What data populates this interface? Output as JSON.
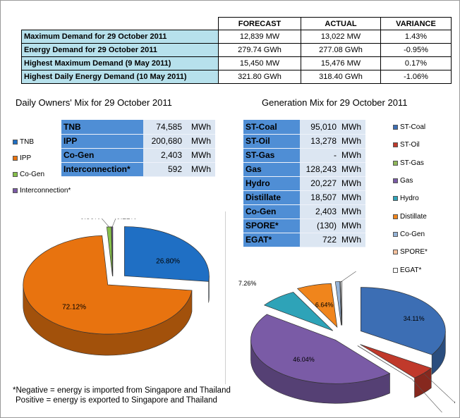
{
  "summary": {
    "headers": [
      "",
      "FORECAST",
      "ACTUAL",
      "VARIANCE"
    ],
    "rows": [
      [
        "Maximum Demand for 29 October 2011",
        "12,839  MW",
        "13,022  MW",
        "1.43%"
      ],
      [
        "Energy Demand for 29 October 2011",
        "279.74  GWh",
        "277.08  GWh",
        "-0.95%"
      ],
      [
        "Highest Maximum Demand (9 May 2011)",
        "15,450  MW",
        "15,476  MW",
        "0.17%"
      ],
      [
        "Highest Daily Energy Demand (10 May 2011)",
        "321.80  GWh",
        "318.40  GWh",
        "-1.06%"
      ]
    ]
  },
  "owners": {
    "title": "Daily Owners' Mix for 29 October 2011",
    "rows": [
      {
        "name": "TNB",
        "value": "74,585",
        "unit": "MWh"
      },
      {
        "name": "IPP",
        "value": "200,680",
        "unit": "MWh"
      },
      {
        "name": "Co-Gen",
        "value": "2,403",
        "unit": "MWh"
      },
      {
        "name": "Interconnection*",
        "value": "592",
        "unit": "MWh"
      }
    ]
  },
  "generation": {
    "title": "Generation Mix for 29 October 2011",
    "rows": [
      {
        "name": "ST-Coal",
        "value": "95,010",
        "unit": "MWh"
      },
      {
        "name": "ST-Oil",
        "value": "13,278",
        "unit": "MWh"
      },
      {
        "name": "ST-Gas",
        "value": "-",
        "unit": "MWh"
      },
      {
        "name": "Gas",
        "value": "128,243",
        "unit": "MWh"
      },
      {
        "name": "Hydro",
        "value": "20,227",
        "unit": "MWh"
      },
      {
        "name": "Distillate",
        "value": "18,507",
        "unit": "MWh"
      },
      {
        "name": "Co-Gen",
        "value": "2,403",
        "unit": "MWh"
      },
      {
        "name": "SPORE*",
        "value": "(130)",
        "unit": "MWh"
      },
      {
        "name": "EGAT*",
        "value": "722",
        "unit": "MWh"
      }
    ]
  },
  "notes": {
    "line1": "*Negative = energy is imported from Singapore and Thailand",
    "line2": "Positive = energy is exported to Singapore and Thailand"
  },
  "chart_data": [
    {
      "type": "pie",
      "title": "Daily Owners' Mix for 29 October 2011",
      "legend_position": "left",
      "labels": [
        "TNB",
        "IPP",
        "Co-Gen",
        "Interconnection*"
      ],
      "values": [
        26.8,
        72.12,
        0.86,
        0.21
      ],
      "value_labels": [
        "26.80%",
        "72.12%",
        "0.86%",
        "0.21%"
      ],
      "colors": [
        "#1f6fc4",
        "#e8730f",
        "#86c04a",
        "#7b5aa6"
      ]
    },
    {
      "type": "pie",
      "title": "Generation Mix for 29 October 2011",
      "legend_position": "right",
      "labels": [
        "ST-Coal",
        "ST-Oil",
        "ST-Gas",
        "Gas",
        "Hydro",
        "Distillate",
        "Co-Gen",
        "SPORE*",
        "EGAT*"
      ],
      "values": [
        34.11,
        4.77,
        0.0,
        46.04,
        7.26,
        6.64,
        0.86,
        -0.05,
        0.26
      ],
      "value_labels": [
        "34.11%",
        "4.77%",
        "0.00%",
        "46.04%",
        "7.26%",
        "6.64%",
        "0.86%",
        "-0.05%",
        "0.26%"
      ],
      "colors": [
        "#3c6eb4",
        "#c0392b",
        "#8fb85a",
        "#7a5ba6",
        "#2ea3b8",
        "#f0851c",
        "#95b3d7",
        "#f4c19e",
        "#ffffff"
      ]
    }
  ]
}
